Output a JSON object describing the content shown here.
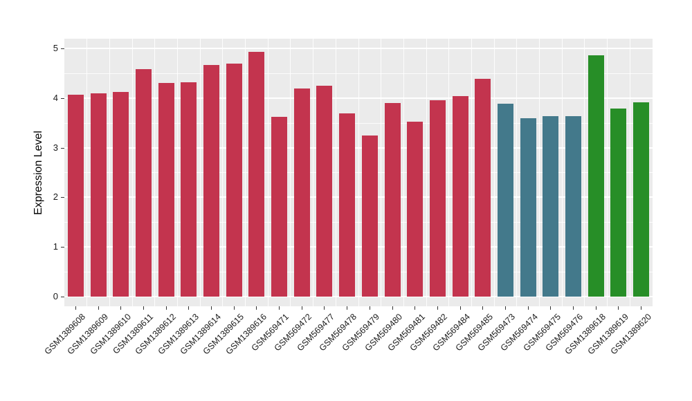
{
  "chart_data": {
    "type": "bar",
    "title": "",
    "xlabel": "",
    "ylabel": "Expression Level",
    "ylim": [
      0,
      5
    ],
    "yticks": [
      "0",
      "1",
      "2",
      "3",
      "4",
      "5"
    ],
    "minor_grid_step": 0.5,
    "grid": "white major and minor gridlines on gray panel, vertical lines at category boundaries",
    "legend_position": "none",
    "panel_background": "#EBEBEB",
    "grid_color": "#FFFFFF",
    "axis_text_color": "#1A1A1A",
    "tick_mark_color": "#333333",
    "palette": {
      "crimson": "#C3344E",
      "teal": "#43798B",
      "green": "#278E27"
    },
    "categories": [
      "GSM1389608",
      "GSM1389609",
      "GSM1389610",
      "GSM1389611",
      "GSM1389612",
      "GSM1389613",
      "GSM1389614",
      "GSM1389615",
      "GSM1389616",
      "GSM569471",
      "GSM569472",
      "GSM569477",
      "GSM569478",
      "GSM569479",
      "GSM569480",
      "GSM569481",
      "GSM569482",
      "GSM569484",
      "GSM569485",
      "GSM569473",
      "GSM569474",
      "GSM569475",
      "GSM569476",
      "GSM1389618",
      "GSM1389619",
      "GSM1389620"
    ],
    "values": [
      4.07,
      4.09,
      4.13,
      4.59,
      4.3,
      4.32,
      4.67,
      4.69,
      4.93,
      3.62,
      4.2,
      4.25,
      3.69,
      3.24,
      3.9,
      3.52,
      3.95,
      4.04,
      4.39,
      3.88,
      3.6,
      3.63,
      3.63,
      4.87,
      3.79,
      3.92
    ],
    "bar_groups": [
      "crimson",
      "crimson",
      "crimson",
      "crimson",
      "crimson",
      "crimson",
      "crimson",
      "crimson",
      "crimson",
      "crimson",
      "crimson",
      "crimson",
      "crimson",
      "crimson",
      "crimson",
      "crimson",
      "crimson",
      "crimson",
      "crimson",
      "teal",
      "teal",
      "teal",
      "teal",
      "green",
      "green",
      "green"
    ]
  }
}
